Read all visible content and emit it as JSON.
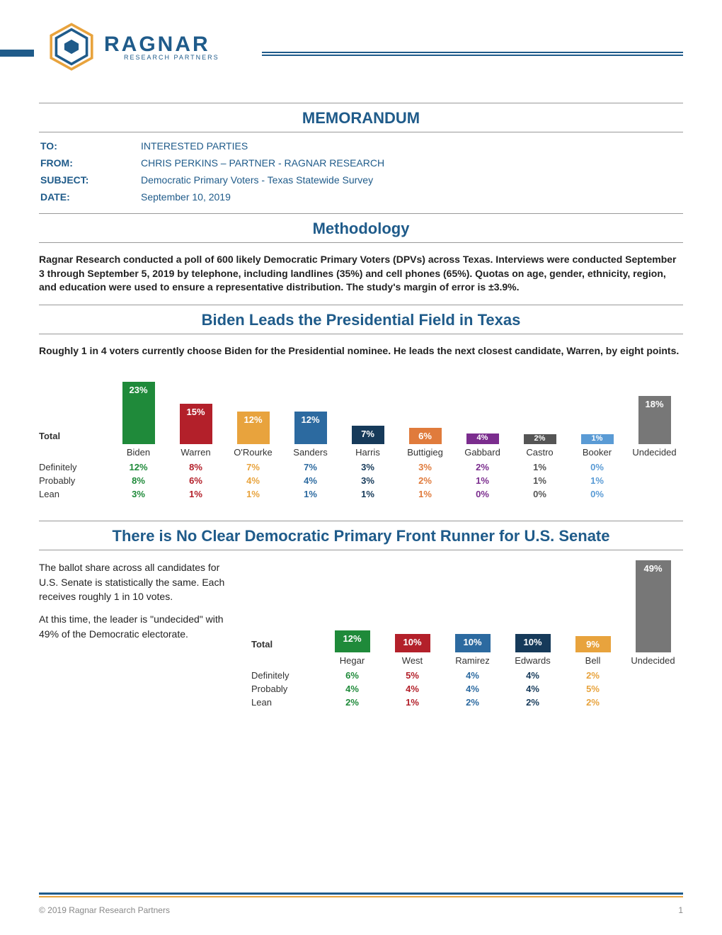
{
  "brand": {
    "name": "RAGNAR",
    "sub": "RESEARCH PARTNERS",
    "primary": "#1f5b8a",
    "accent": "#e8a33d"
  },
  "memo": {
    "title": "MEMORANDUM",
    "rows": [
      {
        "label": "TO:",
        "value": "INTERESTED PARTIES"
      },
      {
        "label": "FROM:",
        "value": "CHRIS PERKINS – PARTNER - RAGNAR RESEARCH"
      },
      {
        "label": "SUBJECT:",
        "value": "Democratic Primary Voters - Texas Statewide Survey"
      },
      {
        "label": "DATE:",
        "value": "September 10, 2019"
      }
    ]
  },
  "methodology": {
    "title": "Methodology",
    "text": "Ragnar Research conducted a poll of 600 likely Democratic Primary Voters (DPVs) across Texas. Interviews were conducted September 3 through September 5, 2019 by telephone, including landlines (35%) and cell phones (65%). Quotas on age, gender, ethnicity, region, and education were used to ensure a representative distribution. The study's margin of error is ±3.9%."
  },
  "pres": {
    "title": "Biden Leads the Presidential Field in Texas",
    "text": "Roughly 1 in 4 voters currently choose Biden for the Presidential nominee. He leads the next closest candidate, Warren, by eight points.",
    "total_label": "Total",
    "breakdown_labels": [
      "Definitely",
      "Probably",
      "Lean"
    ],
    "max_value": 23,
    "candidates": [
      {
        "name": "Biden",
        "pct": "23%",
        "v": 23,
        "color": "#1f8a3a",
        "rows": [
          "12%",
          "8%",
          "3%"
        ]
      },
      {
        "name": "Warren",
        "pct": "15%",
        "v": 15,
        "color": "#b3202a",
        "rows": [
          "8%",
          "6%",
          "1%"
        ]
      },
      {
        "name": "O'Rourke",
        "pct": "12%",
        "v": 12,
        "color": "#e8a33d",
        "rows": [
          "7%",
          "4%",
          "1%"
        ]
      },
      {
        "name": "Sanders",
        "pct": "12%",
        "v": 12,
        "color": "#2c6aa0",
        "rows": [
          "7%",
          "4%",
          "1%"
        ]
      },
      {
        "name": "Harris",
        "pct": "7%",
        "v": 7,
        "color": "#163a5a",
        "rows": [
          "3%",
          "3%",
          "1%"
        ]
      },
      {
        "name": "Buttigieg",
        "pct": "6%",
        "v": 6,
        "color": "#e07b3c",
        "rows": [
          "3%",
          "2%",
          "1%"
        ]
      },
      {
        "name": "Gabbard",
        "pct": "4%",
        "v": 4,
        "color": "#7b2d8e",
        "rows": [
          "2%",
          "1%",
          "0%"
        ]
      },
      {
        "name": "Castro",
        "pct": "2%",
        "v": 2,
        "color": "#555555",
        "rows": [
          "1%",
          "1%",
          "0%"
        ]
      },
      {
        "name": "Booker",
        "pct": "1%",
        "v": 1,
        "color": "#5a9bd5",
        "rows": [
          "0%",
          "1%",
          "0%"
        ]
      },
      {
        "name": "Undecided",
        "pct": "18%",
        "v": 18,
        "color": "#777777",
        "rows": [
          "",
          "",
          ""
        ]
      }
    ]
  },
  "senate": {
    "title": "There is No Clear Democratic Primary Front Runner for U.S. Senate",
    "para1": "The ballot share across all candidates for U.S. Senate is statistically the same. Each receives roughly 1 in 10 votes.",
    "para2": "At this time, the leader is \"undecided\" with 49% of the Democratic electorate.",
    "total_label": "Total",
    "breakdown_labels": [
      "Definitely",
      "Probably",
      "Lean"
    ],
    "max_value": 49,
    "candidates": [
      {
        "name": "Hegar",
        "pct": "12%",
        "v": 12,
        "color": "#1f8a3a",
        "rows": [
          "6%",
          "4%",
          "2%"
        ]
      },
      {
        "name": "West",
        "pct": "10%",
        "v": 10,
        "color": "#b3202a",
        "rows": [
          "5%",
          "4%",
          "1%"
        ]
      },
      {
        "name": "Ramirez",
        "pct": "10%",
        "v": 10,
        "color": "#2c6aa0",
        "rows": [
          "4%",
          "4%",
          "2%"
        ]
      },
      {
        "name": "Edwards",
        "pct": "10%",
        "v": 10,
        "color": "#163a5a",
        "rows": [
          "4%",
          "4%",
          "2%"
        ]
      },
      {
        "name": "Bell",
        "pct": "9%",
        "v": 9,
        "color": "#e8a33d",
        "rows": [
          "2%",
          "5%",
          "2%"
        ]
      },
      {
        "name": "Undecided",
        "pct": "49%",
        "v": 49,
        "color": "#777777",
        "rows": [
          "",
          "",
          ""
        ]
      }
    ]
  },
  "footer": {
    "copyright": "© 2019 Ragnar Research Partners",
    "page": "1"
  }
}
